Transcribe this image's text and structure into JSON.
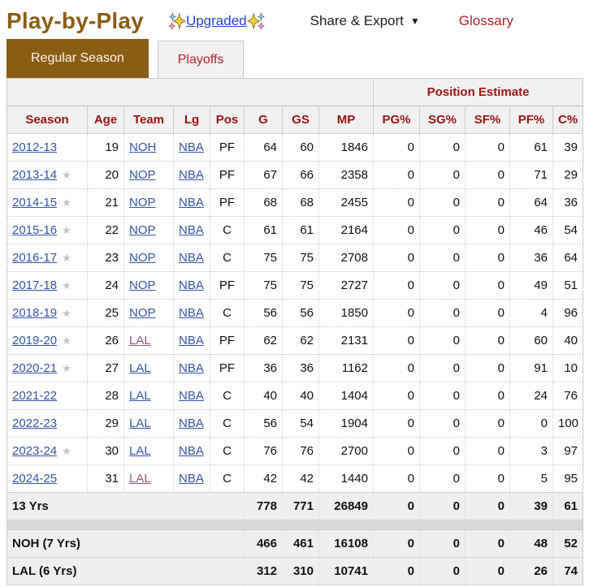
{
  "header": {
    "title": "Play-by-Play",
    "upgraded_label": "Upgraded",
    "share_export_label": "Share & Export",
    "share_caret": "▼",
    "glossary_label": "Glossary"
  },
  "tabs": [
    {
      "label": "Regular Season",
      "active": true
    },
    {
      "label": "Playoffs",
      "active": false
    }
  ],
  "table": {
    "group_header": "Position Estimate",
    "columns": [
      "Season",
      "Age",
      "Team",
      "Lg",
      "Pos",
      "G",
      "GS",
      "MP",
      "PG%",
      "SG%",
      "SF%",
      "PF%",
      "C%"
    ],
    "rows": [
      {
        "season": "2012-13",
        "star": false,
        "age": "19",
        "team": "NOH",
        "team_visited": false,
        "lg": "NBA",
        "pos": "PF",
        "g": "64",
        "gs": "60",
        "mp": "1846",
        "pg": "0",
        "sg": "0",
        "sf": "0",
        "pf": "61",
        "c": "39"
      },
      {
        "season": "2013-14",
        "star": true,
        "age": "20",
        "team": "NOP",
        "team_visited": false,
        "lg": "NBA",
        "pos": "PF",
        "g": "67",
        "gs": "66",
        "mp": "2358",
        "pg": "0",
        "sg": "0",
        "sf": "0",
        "pf": "71",
        "c": "29"
      },
      {
        "season": "2014-15",
        "star": true,
        "age": "21",
        "team": "NOP",
        "team_visited": false,
        "lg": "NBA",
        "pos": "PF",
        "g": "68",
        "gs": "68",
        "mp": "2455",
        "pg": "0",
        "sg": "0",
        "sf": "0",
        "pf": "64",
        "c": "36"
      },
      {
        "season": "2015-16",
        "star": true,
        "age": "22",
        "team": "NOP",
        "team_visited": false,
        "lg": "NBA",
        "pos": "C",
        "g": "61",
        "gs": "61",
        "mp": "2164",
        "pg": "0",
        "sg": "0",
        "sf": "0",
        "pf": "46",
        "c": "54"
      },
      {
        "season": "2016-17",
        "star": true,
        "age": "23",
        "team": "NOP",
        "team_visited": false,
        "lg": "NBA",
        "pos": "C",
        "g": "75",
        "gs": "75",
        "mp": "2708",
        "pg": "0",
        "sg": "0",
        "sf": "0",
        "pf": "36",
        "c": "64"
      },
      {
        "season": "2017-18",
        "star": true,
        "age": "24",
        "team": "NOP",
        "team_visited": false,
        "lg": "NBA",
        "pos": "PF",
        "g": "75",
        "gs": "75",
        "mp": "2727",
        "pg": "0",
        "sg": "0",
        "sf": "0",
        "pf": "49",
        "c": "51"
      },
      {
        "season": "2018-19",
        "star": true,
        "age": "25",
        "team": "NOP",
        "team_visited": false,
        "lg": "NBA",
        "pos": "C",
        "g": "56",
        "gs": "56",
        "mp": "1850",
        "pg": "0",
        "sg": "0",
        "sf": "0",
        "pf": "4",
        "c": "96"
      },
      {
        "season": "2019-20",
        "star": true,
        "age": "26",
        "team": "LAL",
        "team_visited": true,
        "lg": "NBA",
        "pos": "PF",
        "g": "62",
        "gs": "62",
        "mp": "2131",
        "pg": "0",
        "sg": "0",
        "sf": "0",
        "pf": "60",
        "c": "40"
      },
      {
        "season": "2020-21",
        "star": true,
        "age": "27",
        "team": "LAL",
        "team_visited": false,
        "lg": "NBA",
        "pos": "PF",
        "g": "36",
        "gs": "36",
        "mp": "1162",
        "pg": "0",
        "sg": "0",
        "sf": "0",
        "pf": "91",
        "c": "10"
      },
      {
        "season": "2021-22",
        "star": false,
        "age": "28",
        "team": "LAL",
        "team_visited": false,
        "lg": "NBA",
        "pos": "C",
        "g": "40",
        "gs": "40",
        "mp": "1404",
        "pg": "0",
        "sg": "0",
        "sf": "0",
        "pf": "24",
        "c": "76"
      },
      {
        "season": "2022-23",
        "star": false,
        "age": "29",
        "team": "LAL",
        "team_visited": false,
        "lg": "NBA",
        "pos": "C",
        "g": "56",
        "gs": "54",
        "mp": "1904",
        "pg": "0",
        "sg": "0",
        "sf": "0",
        "pf": "0",
        "c": "100"
      },
      {
        "season": "2023-24",
        "star": true,
        "age": "30",
        "team": "LAL",
        "team_visited": false,
        "lg": "NBA",
        "pos": "C",
        "g": "76",
        "gs": "76",
        "mp": "2700",
        "pg": "0",
        "sg": "0",
        "sf": "0",
        "pf": "3",
        "c": "97"
      },
      {
        "season": "2024-25",
        "star": false,
        "age": "31",
        "team": "LAL",
        "team_visited": true,
        "lg": "NBA",
        "pos": "C",
        "g": "42",
        "gs": "42",
        "mp": "1440",
        "pg": "0",
        "sg": "0",
        "sf": "0",
        "pf": "5",
        "c": "95"
      }
    ],
    "career_total": {
      "label": "13 Yrs",
      "g": "778",
      "gs": "771",
      "mp": "26849",
      "pg": "0",
      "sg": "0",
      "sf": "0",
      "pf": "39",
      "c": "61"
    },
    "team_totals": [
      {
        "label": "NOH (7 Yrs)",
        "g": "466",
        "gs": "461",
        "mp": "16108",
        "pg": "0",
        "sg": "0",
        "sf": "0",
        "pf": "48",
        "c": "52"
      },
      {
        "label": "LAL (6 Yrs)",
        "g": "312",
        "gs": "310",
        "mp": "10741",
        "pg": "0",
        "sg": "0",
        "sf": "0",
        "pf": "26",
        "c": "74"
      }
    ]
  },
  "colors": {
    "accent_brown": "#8a5d15",
    "header_red": "#9b1212",
    "nav_red": "#b2212b",
    "link_blue": "#3454a6",
    "visited_purple": "#975380",
    "star_gray": "#c3c3c3"
  },
  "icons": {
    "star": "★",
    "sparkles": "sparkles-icon"
  }
}
